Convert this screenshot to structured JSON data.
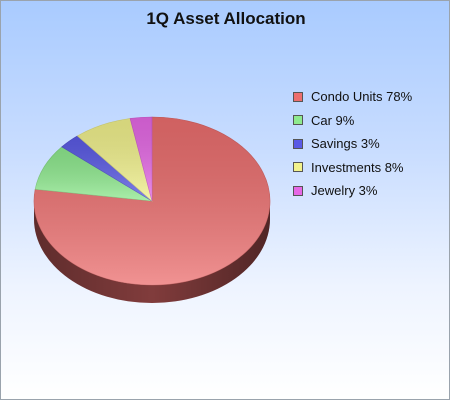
{
  "chart_data": {
    "type": "pie",
    "title": "1Q Asset Allocation",
    "series": [
      {
        "name": "Condo Units",
        "value": 78,
        "label": "Condo Units 78%",
        "color": "#ec6e6e"
      },
      {
        "name": "Car",
        "value": 9,
        "label": "Car 9%",
        "color": "#8eea8e"
      },
      {
        "name": "Savings",
        "value": 3,
        "label": "Savings 3%",
        "color": "#5a5ae6"
      },
      {
        "name": "Investments",
        "value": 8,
        "label": "Investments 8%",
        "color": "#f2f28c"
      },
      {
        "name": "Jewelry",
        "value": 3,
        "label": "Jewelry 3%",
        "color": "#e668e6"
      }
    ],
    "legend_position": "right",
    "style": "3d-pie"
  }
}
